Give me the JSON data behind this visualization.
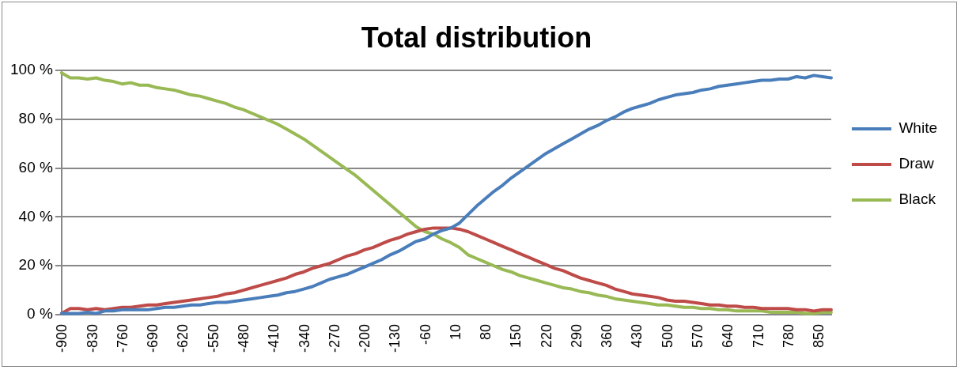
{
  "chart_data": {
    "type": "line",
    "title": "Total distribution",
    "x": [
      -900,
      -880,
      -860,
      -840,
      -820,
      -800,
      -780,
      -760,
      -740,
      -720,
      -700,
      -680,
      -660,
      -640,
      -620,
      -600,
      -580,
      -560,
      -540,
      -520,
      -500,
      -480,
      -460,
      -440,
      -420,
      -400,
      -380,
      -360,
      -340,
      -320,
      -300,
      -280,
      -260,
      -240,
      -220,
      -200,
      -180,
      -160,
      -140,
      -120,
      -100,
      -80,
      -60,
      -40,
      -20,
      0,
      20,
      40,
      60,
      80,
      100,
      120,
      140,
      160,
      180,
      200,
      220,
      240,
      260,
      280,
      300,
      320,
      340,
      360,
      380,
      400,
      420,
      440,
      460,
      480,
      500,
      520,
      540,
      560,
      580,
      600,
      620,
      640,
      660,
      680,
      700,
      720,
      740,
      760,
      780,
      800,
      820,
      840,
      860,
      880
    ],
    "series": [
      {
        "name": "White",
        "color": "#4a7ebb",
        "values": [
          0.5,
          0.5,
          0.5,
          1,
          0.5,
          1.5,
          1.5,
          2,
          2,
          2,
          2,
          2.5,
          3,
          3,
          3.5,
          4,
          4,
          4.5,
          5,
          5,
          5.5,
          6,
          6.5,
          7,
          7.5,
          8,
          9,
          9.5,
          10.5,
          11.5,
          13,
          14.5,
          15.5,
          16.5,
          18,
          19.5,
          21,
          22.5,
          24.5,
          26,
          28,
          30,
          31,
          33,
          34.5,
          35.5,
          37.5,
          41,
          44.5,
          47.5,
          50.5,
          53,
          56,
          58.5,
          61,
          63.5,
          66,
          68,
          70,
          72,
          74,
          76,
          77.5,
          79.5,
          81,
          83,
          84.5,
          85.5,
          86.5,
          88,
          89,
          90,
          90.5,
          91,
          92,
          92.5,
          93.5,
          94,
          94.5,
          95,
          95.5,
          96,
          96,
          96.5,
          96.5,
          97.5,
          97,
          98,
          97.5,
          97
        ]
      },
      {
        "name": "Draw",
        "color": "#be4b48",
        "values": [
          0.5,
          2.5,
          2.5,
          2,
          2.5,
          2,
          2.5,
          3,
          3,
          3.5,
          4,
          4,
          4.5,
          5,
          5.5,
          6,
          6.5,
          7,
          7.5,
          8.5,
          9,
          10,
          11,
          12,
          13,
          14,
          15,
          16.5,
          17.5,
          19,
          20,
          21,
          22.5,
          24,
          25,
          26.5,
          27.5,
          29,
          30.5,
          31.5,
          33,
          34,
          35,
          35.5,
          35.5,
          35.5,
          35,
          34,
          32.5,
          31,
          29.5,
          28,
          26.5,
          25,
          23.5,
          22,
          20.5,
          19,
          18,
          16.5,
          15,
          14,
          13,
          12,
          10.5,
          9.5,
          8.5,
          8,
          7.5,
          7,
          6,
          5.5,
          5.5,
          5,
          4.5,
          4,
          4,
          3.5,
          3.5,
          3,
          3,
          2.5,
          2.5,
          2.5,
          2.5,
          2,
          2,
          1.5,
          2,
          2
        ]
      },
      {
        "name": "Black",
        "color": "#98b954",
        "values": [
          99,
          97,
          97,
          96.5,
          97,
          96,
          95.5,
          94.5,
          95,
          94,
          94,
          93,
          92.5,
          92,
          91,
          90,
          89.5,
          88.5,
          87.5,
          86.5,
          85,
          84,
          82.5,
          81,
          79.5,
          78,
          76,
          74,
          72,
          69.5,
          67,
          64.5,
          62,
          59.5,
          57,
          54,
          51,
          48,
          45,
          42,
          39,
          36,
          34,
          33,
          31,
          29.5,
          27.5,
          24.5,
          23,
          21.5,
          20,
          18.5,
          17.5,
          16,
          15,
          14,
          13,
          12,
          11,
          10.5,
          9.5,
          9,
          8,
          7.5,
          6.5,
          6,
          5.5,
          5,
          4.5,
          4,
          4,
          3.5,
          3,
          3,
          2.5,
          2.5,
          2,
          2,
          1.5,
          1.5,
          1.5,
          1.5,
          1,
          1,
          1,
          1,
          0.5,
          0.5,
          1,
          1
        ]
      }
    ],
    "xlim": [
      -900,
      880
    ],
    "xticks": [
      -900,
      -830,
      -760,
      -690,
      -620,
      -550,
      -480,
      -410,
      -340,
      -270,
      -200,
      -130,
      -60,
      10,
      80,
      150,
      220,
      290,
      360,
      430,
      500,
      570,
      640,
      710,
      780,
      850
    ],
    "ylim": [
      0,
      100
    ],
    "yticks": [
      {
        "value": 0,
        "label": "0 %"
      },
      {
        "value": 20,
        "label": "20 %"
      },
      {
        "value": 40,
        "label": "40 %"
      },
      {
        "value": 60,
        "label": "60 %"
      },
      {
        "value": 80,
        "label": "80 %"
      },
      {
        "value": 100,
        "label": "100 %"
      }
    ],
    "grid": "y",
    "legend": "right",
    "marker": "none",
    "line_style": "solid"
  }
}
